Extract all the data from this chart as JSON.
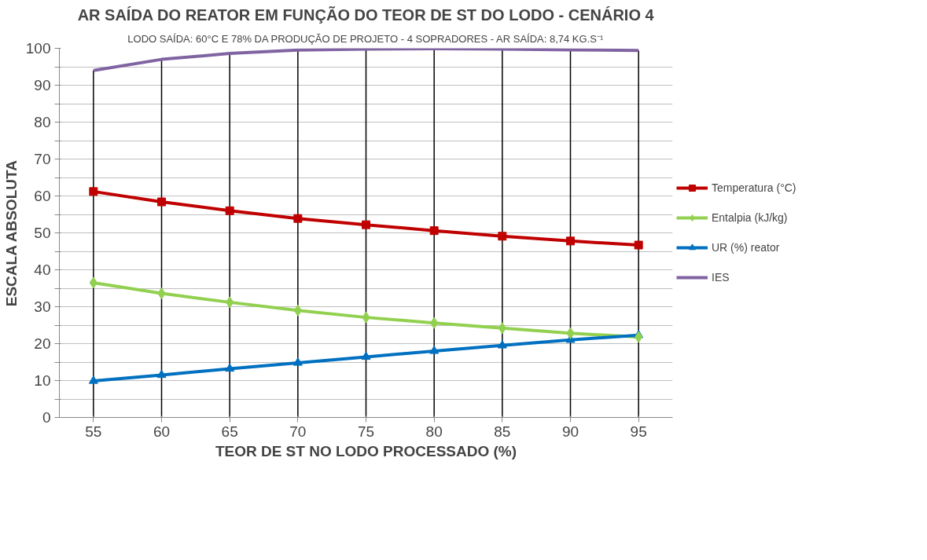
{
  "chart_data": {
    "type": "line",
    "title": "AR SAÍDA DO REATOR EM FUNÇÃO DO TEOR DE ST DO LODO - CENÁRIO 4",
    "subtitle": "LODO SAÍDA: 60°C E 78% DA PRODUÇÃO DE PROJETO - 4 SOPRADORES - AR SAÍDA: 8,74 KG.S⁻¹",
    "xlabel": "TEOR DE ST NO LODO PROCESSADO (%)",
    "ylabel": "ESCALA ABSOLUTA",
    "categories": [
      "55",
      "60",
      "65",
      "70",
      "75",
      "80",
      "85",
      "90",
      "95"
    ],
    "series": [
      {
        "name": "Temperatura (°C)",
        "color": "#c00000",
        "marker": "square",
        "values": [
          61.2,
          58.4,
          56.0,
          53.9,
          52.2,
          50.6,
          49.1,
          47.8,
          46.7
        ]
      },
      {
        "name": "Entalpia (kJ/kg)",
        "color": "#92d050",
        "marker": "diamond",
        "values": [
          36.5,
          33.6,
          31.2,
          29.0,
          27.1,
          25.6,
          24.2,
          22.8,
          21.8
        ]
      },
      {
        "name": "UR (%) reator",
        "color": "#0070c0",
        "marker": "triangle",
        "values": [
          9.9,
          11.5,
          13.2,
          14.8,
          16.4,
          18.0,
          19.5,
          21.0,
          22.3
        ]
      },
      {
        "name": "IES",
        "color": "#8064a2",
        "marker": "none",
        "values": [
          94.0,
          97.0,
          98.6,
          99.5,
          99.8,
          99.9,
          99.8,
          99.6,
          99.4
        ]
      }
    ],
    "ref_lines": [
      {
        "axis": "x",
        "value": "55",
        "color": "#000000"
      },
      {
        "axis": "x",
        "value": "60",
        "color": "#000000"
      },
      {
        "axis": "x",
        "value": "65",
        "color": "#000000"
      },
      {
        "axis": "x",
        "value": "70",
        "color": "#000000"
      },
      {
        "axis": "x",
        "value": "75",
        "color": "#000000"
      },
      {
        "axis": "x",
        "value": "80",
        "color": "#000000"
      },
      {
        "axis": "x",
        "value": "85",
        "color": "#000000"
      },
      {
        "axis": "x",
        "value": "90",
        "color": "#000000"
      },
      {
        "axis": "x",
        "value": "95",
        "color": "#000000"
      }
    ],
    "ylim": [
      0,
      100
    ],
    "yticks": [
      0,
      {
        "value": 5,
        "label": null
      },
      10,
      {
        "value": 15,
        "label": null
      },
      20,
      {
        "value": 25,
        "label": null
      },
      30,
      {
        "value": 35,
        "label": null
      },
      40,
      {
        "value": 45,
        "label": null
      },
      50,
      {
        "value": 55,
        "label": null
      },
      60,
      {
        "value": 65,
        "label": null
      },
      70,
      {
        "value": 75,
        "label": null
      },
      80,
      {
        "value": 85,
        "label": null
      },
      90,
      {
        "value": 95,
        "label": null
      },
      100
    ],
    "grid": "y",
    "legend": "right",
    "line_style": "solid"
  }
}
